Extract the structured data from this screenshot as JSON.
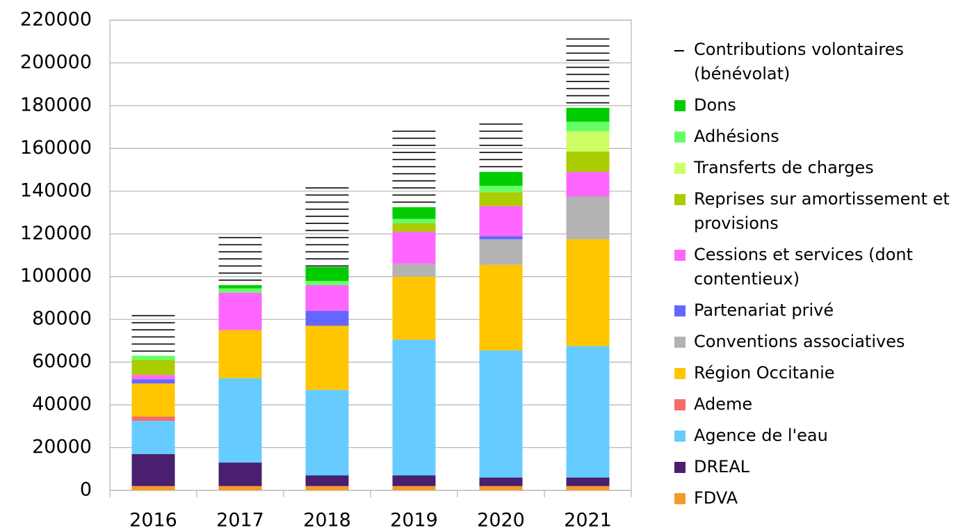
{
  "chart_data": {
    "type": "stacked-bar",
    "categories": [
      "2016",
      "2017",
      "2018",
      "2019",
      "2020",
      "2021"
    ],
    "ylim": [
      0,
      220000
    ],
    "yticks": [
      0,
      20000,
      40000,
      60000,
      80000,
      100000,
      120000,
      140000,
      160000,
      180000,
      200000,
      220000
    ],
    "grid": true,
    "legend": "right",
    "series": [
      {
        "name": "FDVA",
        "color": "#f39b2b",
        "values": [
          2000,
          2000,
          2000,
          2000,
          2000,
          2000
        ]
      },
      {
        "name": "DREAL",
        "color": "#4b1f6f",
        "values": [
          15000,
          11000,
          5000,
          5000,
          4000,
          4000
        ]
      },
      {
        "name": "Agence de l'eau",
        "color": "#66ccff",
        "values": [
          15500,
          39500,
          40000,
          63500,
          59500,
          61500
        ]
      },
      {
        "name": "Ademe",
        "color": "#f36d6d",
        "values": [
          2000,
          0,
          0,
          0,
          0,
          0
        ]
      },
      {
        "name": "Région Occitanie",
        "color": "#ffc600",
        "values": [
          15500,
          22500,
          30000,
          29500,
          40000,
          50000
        ]
      },
      {
        "name": "Conventions associatives",
        "color": "#b3b3b3",
        "values": [
          0,
          0,
          0,
          6000,
          12000,
          20000
        ]
      },
      {
        "name": "Partenariat privé",
        "color": "#6666ff",
        "values": [
          2000,
          0,
          7000,
          0,
          1500,
          0
        ]
      },
      {
        "name": "Cessions et services (dont contentieux)",
        "color": "#ff66ff",
        "values": [
          2000,
          17500,
          12000,
          15000,
          14000,
          11500
        ]
      },
      {
        "name": "Reprises sur amortissement et provisions",
        "color": "#aacc00",
        "values": [
          7000,
          0,
          0,
          4000,
          6500,
          9500
        ]
      },
      {
        "name": "Transferts de charges",
        "color": "#ccff66",
        "values": [
          0,
          0,
          0,
          0,
          0,
          9500
        ]
      },
      {
        "name": "Adhésions",
        "color": "#66ff66",
        "values": [
          2000,
          2000,
          2000,
          2000,
          3000,
          4500
        ]
      },
      {
        "name": "Dons",
        "color": "#00cc00",
        "values": [
          0,
          1500,
          6500,
          5500,
          6500,
          6500
        ]
      },
      {
        "name": "Contributions volontaires (bénévolat)",
        "color": "#000000",
        "hatch": true,
        "values": [
          20000,
          24000,
          37500,
          36500,
          25000,
          32500
        ]
      }
    ]
  }
}
